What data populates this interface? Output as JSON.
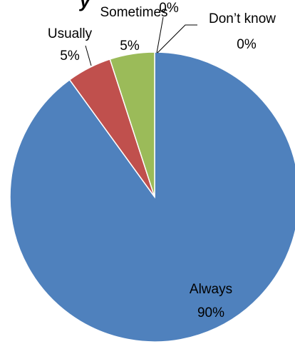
{
  "chart_data": {
    "type": "pie",
    "title_fragment": "y",
    "slices": [
      {
        "category": "Always",
        "value": 90,
        "percent_label": "90%",
        "color": "#4F81BD"
      },
      {
        "category": "Usually",
        "value": 5,
        "percent_label": "5%",
        "color": "#C0504D"
      },
      {
        "category": "Sometimes",
        "value": 5,
        "percent_label": "5%",
        "color": "#9BBB59"
      },
      {
        "category": "",
        "value": 0,
        "percent_label": "0%",
        "color": "#8064A2"
      },
      {
        "category": "Don’t know",
        "value": 0,
        "percent_label": "0%",
        "color": "#4BACC6"
      }
    ],
    "start_angle_deg": 0,
    "direction": "clockwise",
    "legend": "none",
    "slice_border_color": "#FFFFFF"
  }
}
